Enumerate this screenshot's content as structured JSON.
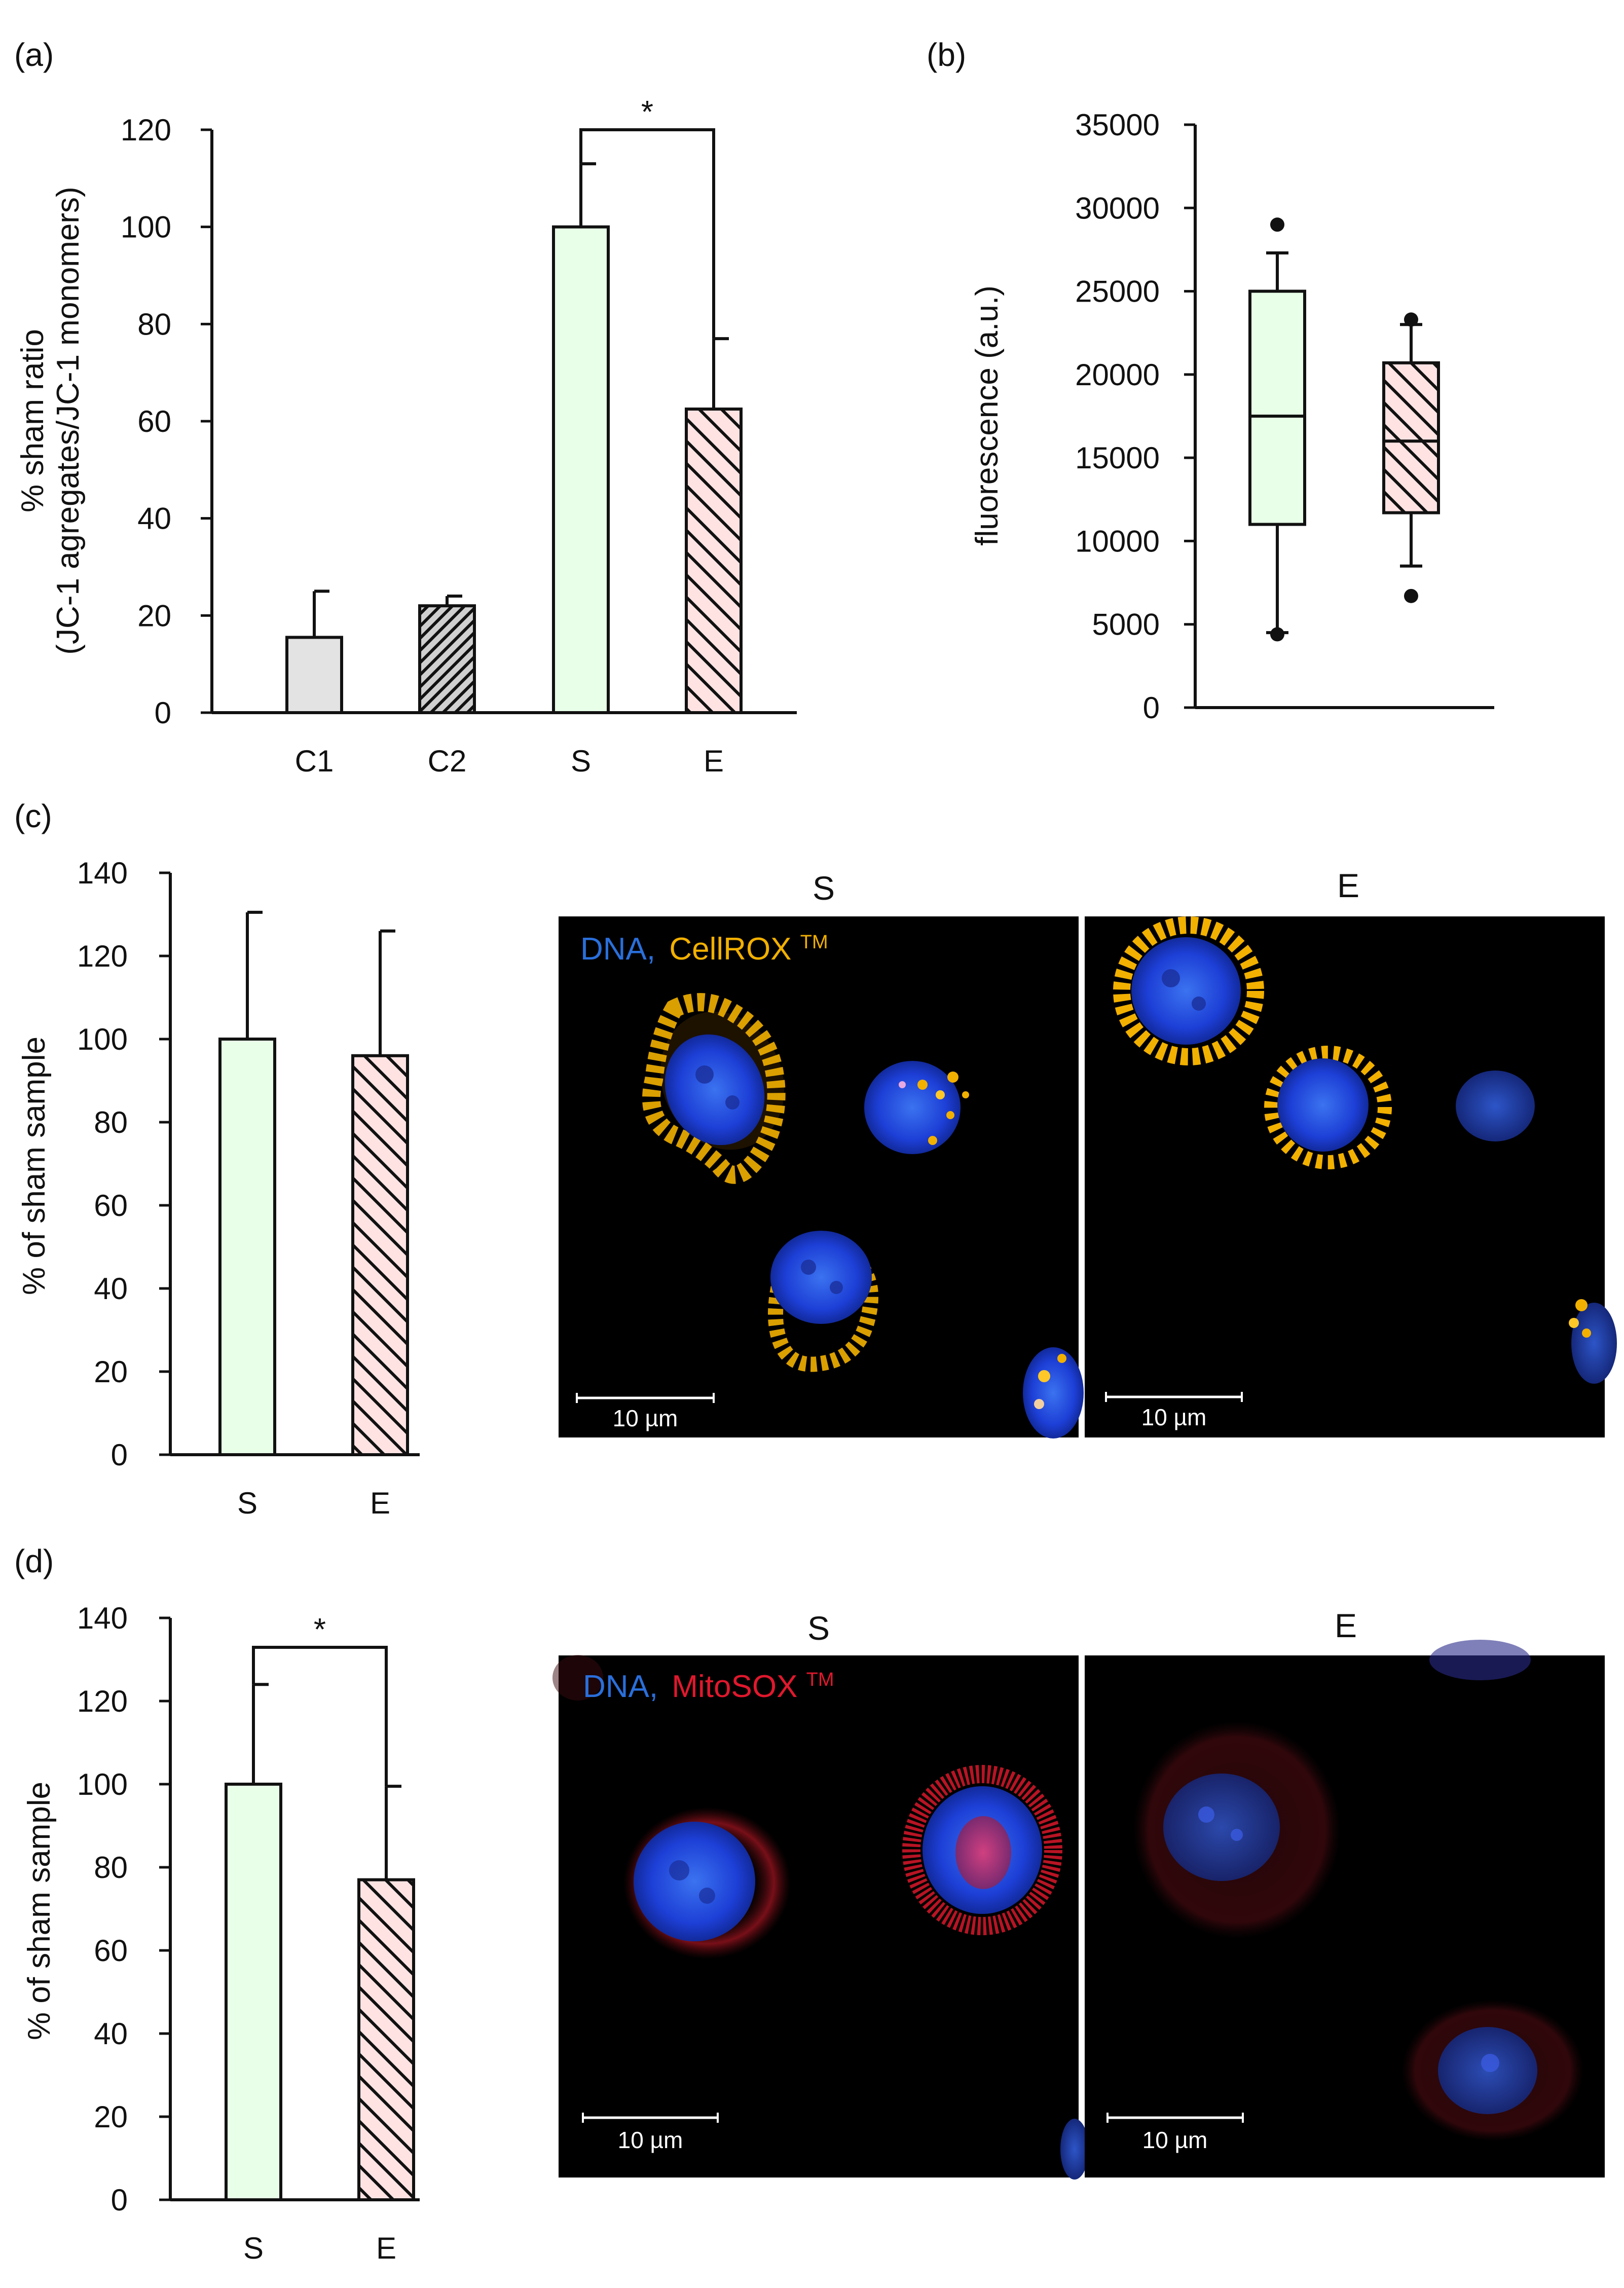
{
  "colors": {
    "axis": "#111111",
    "C1_fill": "#e3e3e3",
    "C2_fill": "#cfcfcf",
    "S_fill": "#e8ffe8",
    "E_fill": "#ffe3e3",
    "dna": "#2a6fdb",
    "cellrox": "#f2b000",
    "mitosox": "#e0182d"
  },
  "panel_labels": {
    "a": "(a)",
    "b": "(b)",
    "c": "(c)",
    "d": "(d)"
  },
  "chart_data": [
    {
      "id": "a",
      "type": "bar",
      "title": "",
      "xlabel": "",
      "ylabel_line1": "% sham ratio",
      "ylabel_line2": "(JC-1 agregates/JC-1 monomers)",
      "ylim": [
        0,
        120
      ],
      "yticks": [
        0,
        20,
        40,
        60,
        80,
        100,
        120
      ],
      "categories": [
        "C1",
        "C2",
        "S",
        "E"
      ],
      "values": [
        15.5,
        22,
        100,
        62.5
      ],
      "errors": [
        9.5,
        2,
        13,
        14.5
      ],
      "patterns": [
        "solid-grey",
        "dense-hatch",
        "solid-green",
        "hatch-pink"
      ],
      "significance": {
        "from": "S",
        "to": "E",
        "label": "*"
      },
      "legend": "none"
    },
    {
      "id": "b",
      "type": "box",
      "title": "",
      "xlabel": "",
      "ylabel": "fluorescence (a.u.)",
      "ylim": [
        0,
        35000
      ],
      "yticks": [
        0,
        5000,
        10000,
        15000,
        20000,
        25000,
        30000,
        35000
      ],
      "boxes": [
        {
          "group": "S",
          "whisker_low": 4500,
          "q1": 11000,
          "median": 17500,
          "q3": 25000,
          "whisker_high": 27300,
          "outliers": [
            29000,
            4400
          ]
        },
        {
          "group": "E",
          "whisker_low": 8500,
          "q1": 11700,
          "median": 16000,
          "q3": 20700,
          "whisker_high": 23000,
          "outliers": [
            23300,
            6700
          ]
        }
      ],
      "legend": "none"
    },
    {
      "id": "c",
      "type": "bar",
      "title": "",
      "xlabel": "",
      "ylabel": "% of sham sample",
      "ylim": [
        0,
        140
      ],
      "yticks": [
        0,
        20,
        40,
        60,
        80,
        100,
        120,
        140
      ],
      "categories": [
        "S",
        "E"
      ],
      "values": [
        100,
        96
      ],
      "errors": [
        30.5,
        30
      ],
      "patterns": [
        "solid-green",
        "hatch-pink"
      ],
      "legend": "none"
    },
    {
      "id": "d",
      "type": "bar",
      "title": "",
      "xlabel": "",
      "ylabel": "% of sham sample",
      "ylim": [
        0,
        140
      ],
      "yticks": [
        0,
        20,
        40,
        60,
        80,
        100,
        120,
        140
      ],
      "categories": [
        "S",
        "E"
      ],
      "values": [
        100,
        77
      ],
      "errors": [
        24,
        22.5
      ],
      "patterns": [
        "solid-green",
        "hatch-pink"
      ],
      "significance": {
        "from": "S",
        "to": "E",
        "label": "*"
      },
      "legend": "none"
    }
  ],
  "micrographs": {
    "c": {
      "left_title": "S",
      "right_title": "E",
      "stain_dna": "DNA,",
      "stain_probe": "CellROX",
      "stain_tm": "TM",
      "scale_left": "10 µm",
      "scale_right": "10 µm"
    },
    "d": {
      "left_title": "S",
      "right_title": "E",
      "stain_dna": "DNA,",
      "stain_probe": "MitoSOX",
      "stain_tm": "TM",
      "scale_left": "10 µm",
      "scale_right": "10 µm"
    }
  }
}
